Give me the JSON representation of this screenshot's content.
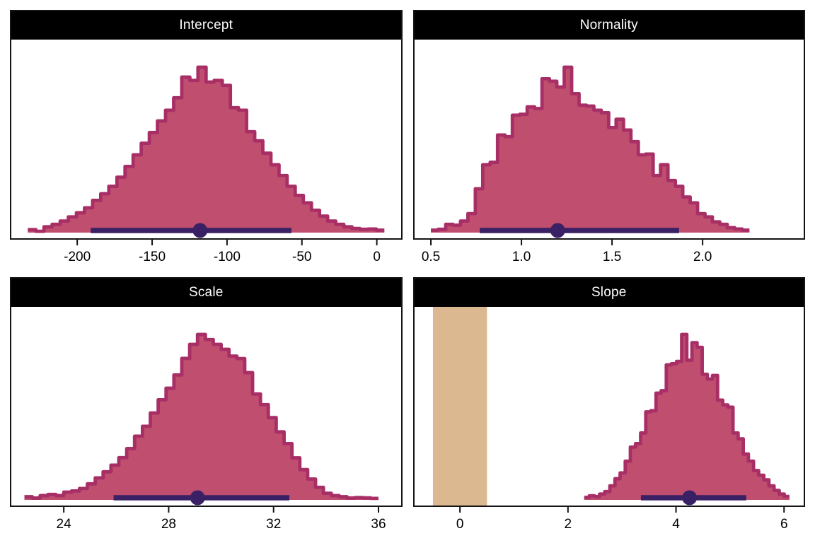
{
  "figure": {
    "background": "#ffffff",
    "description": "2x2 grid of posterior distribution histograms with point estimates and credible intervals"
  },
  "chart_data": {
    "type": "histogram",
    "layout": "2x2-grid",
    "style": {
      "hist_fill": "#c04e6f",
      "hist_outline": "#a82f66",
      "interval_color": "#3a2064",
      "rope_color": "#dbb88f",
      "strip_bg": "#000000",
      "strip_text": "#ffffff",
      "panel_border": "#141414",
      "tick_color": "#111111",
      "tick_label_color": "#000000"
    },
    "panels": [
      {
        "title": "Intercept",
        "x_domain": [
          -244,
          16
        ],
        "x_ticks": [
          {
            "value": -200,
            "label": "-200"
          },
          {
            "value": -150,
            "label": "-150"
          },
          {
            "value": -100,
            "label": "-100"
          },
          {
            "value": -50,
            "label": "-50"
          },
          {
            "value": 0,
            "label": "0"
          }
        ],
        "histogram": {
          "start": -233,
          "bin_width": 5.41,
          "heights_percent_of_max": [
            1.8,
            0.8,
            3.5,
            5,
            7,
            9.5,
            12,
            15,
            19.5,
            23.5,
            28,
            33.5,
            40,
            47,
            54,
            60.5,
            67.5,
            74,
            81.5,
            94,
            92,
            100,
            91,
            92,
            89,
            75.5,
            74,
            61,
            55.5,
            48,
            41,
            34.5,
            28,
            22.5,
            18,
            13.5,
            10,
            7,
            5,
            3.5,
            2.5,
            2,
            2.2,
            1.5
          ]
        },
        "point_interval": {
          "point": -118,
          "lo": -191,
          "hi": -57
        },
        "rope": null
      },
      {
        "title": "Normality",
        "x_domain": [
          0.41,
          2.56
        ],
        "x_ticks": [
          {
            "value": 0.5,
            "label": "0.5"
          },
          {
            "value": 1.0,
            "label": "1.0"
          },
          {
            "value": 1.5,
            "label": "1.5"
          },
          {
            "value": 2.0,
            "label": "2.0"
          }
        ],
        "histogram": {
          "start": 0.5,
          "bin_width": 0.0409,
          "heights_percent_of_max": [
            1.5,
            2,
            5,
            4.5,
            7,
            11.5,
            26.5,
            41,
            42.5,
            59,
            58,
            71,
            71.5,
            76,
            75,
            93,
            91.5,
            88,
            100,
            84,
            77,
            76.5,
            74,
            72.5,
            63.5,
            68.5,
            62,
            55,
            47,
            47.5,
            34.5,
            41,
            31.5,
            28,
            21.5,
            18,
            11.5,
            9.5,
            6.5,
            5,
            3,
            2.2,
            1.5
          ]
        },
        "point_interval": {
          "point": 1.2,
          "lo": 0.77,
          "hi": 1.87
        },
        "rope": null
      },
      {
        "title": "Scale",
        "x_domain": [
          22.0,
          36.85
        ],
        "x_ticks": [
          {
            "value": 24,
            "label": "24"
          },
          {
            "value": 28,
            "label": "28"
          },
          {
            "value": 32,
            "label": "32"
          },
          {
            "value": 36,
            "label": "36"
          }
        ],
        "histogram": {
          "start": 22.5,
          "bin_width": 0.3,
          "heights_percent_of_max": [
            1.9,
            1.1,
            2.6,
            3.3,
            2.6,
            4.7,
            5.4,
            6.9,
            9.7,
            13.3,
            17,
            21,
            25.5,
            31,
            38.5,
            44.5,
            52.5,
            60.5,
            67.5,
            75.5,
            85.5,
            94,
            100,
            96.9,
            94,
            91,
            86.9,
            85.4,
            76.9,
            64,
            57.6,
            49.7,
            41.1,
            34,
            25.4,
            18.3,
            12.6,
            7.6,
            4,
            2.6,
            1.9,
            1.1,
            1.4,
            1.2,
            0.9
          ]
        },
        "point_interval": {
          "point": 29.1,
          "lo": 25.9,
          "hi": 32.6
        },
        "rope": null
      },
      {
        "title": "Slope",
        "x_domain": [
          -0.84,
          6.37
        ],
        "x_ticks": [
          {
            "value": 0,
            "label": "0"
          },
          {
            "value": 2,
            "label": "2"
          },
          {
            "value": 4,
            "label": "4"
          },
          {
            "value": 6,
            "label": "6"
          }
        ],
        "histogram": {
          "start": 2.3,
          "bin_width": 0.095,
          "heights_percent_of_max": [
            1.5,
            2.5,
            2,
            3.5,
            5,
            8.5,
            12.8,
            16.3,
            23.4,
            31.9,
            34,
            40.4,
            53.2,
            53.9,
            64.5,
            66,
            81.6,
            82.3,
            83.7,
            100,
            84.4,
            95,
            92.2,
            75.9,
            73,
            75.2,
            60.3,
            57.4,
            56,
            40.4,
            36.9,
            27.7,
            23.4,
            17.7,
            14.9,
            12.1,
            8.5,
            5.7,
            3.5,
            2.1
          ]
        },
        "point_interval": {
          "point": 4.25,
          "lo": 3.35,
          "hi": 5.3
        },
        "rope": {
          "lo": -0.5,
          "hi": 0.5
        }
      }
    ]
  }
}
